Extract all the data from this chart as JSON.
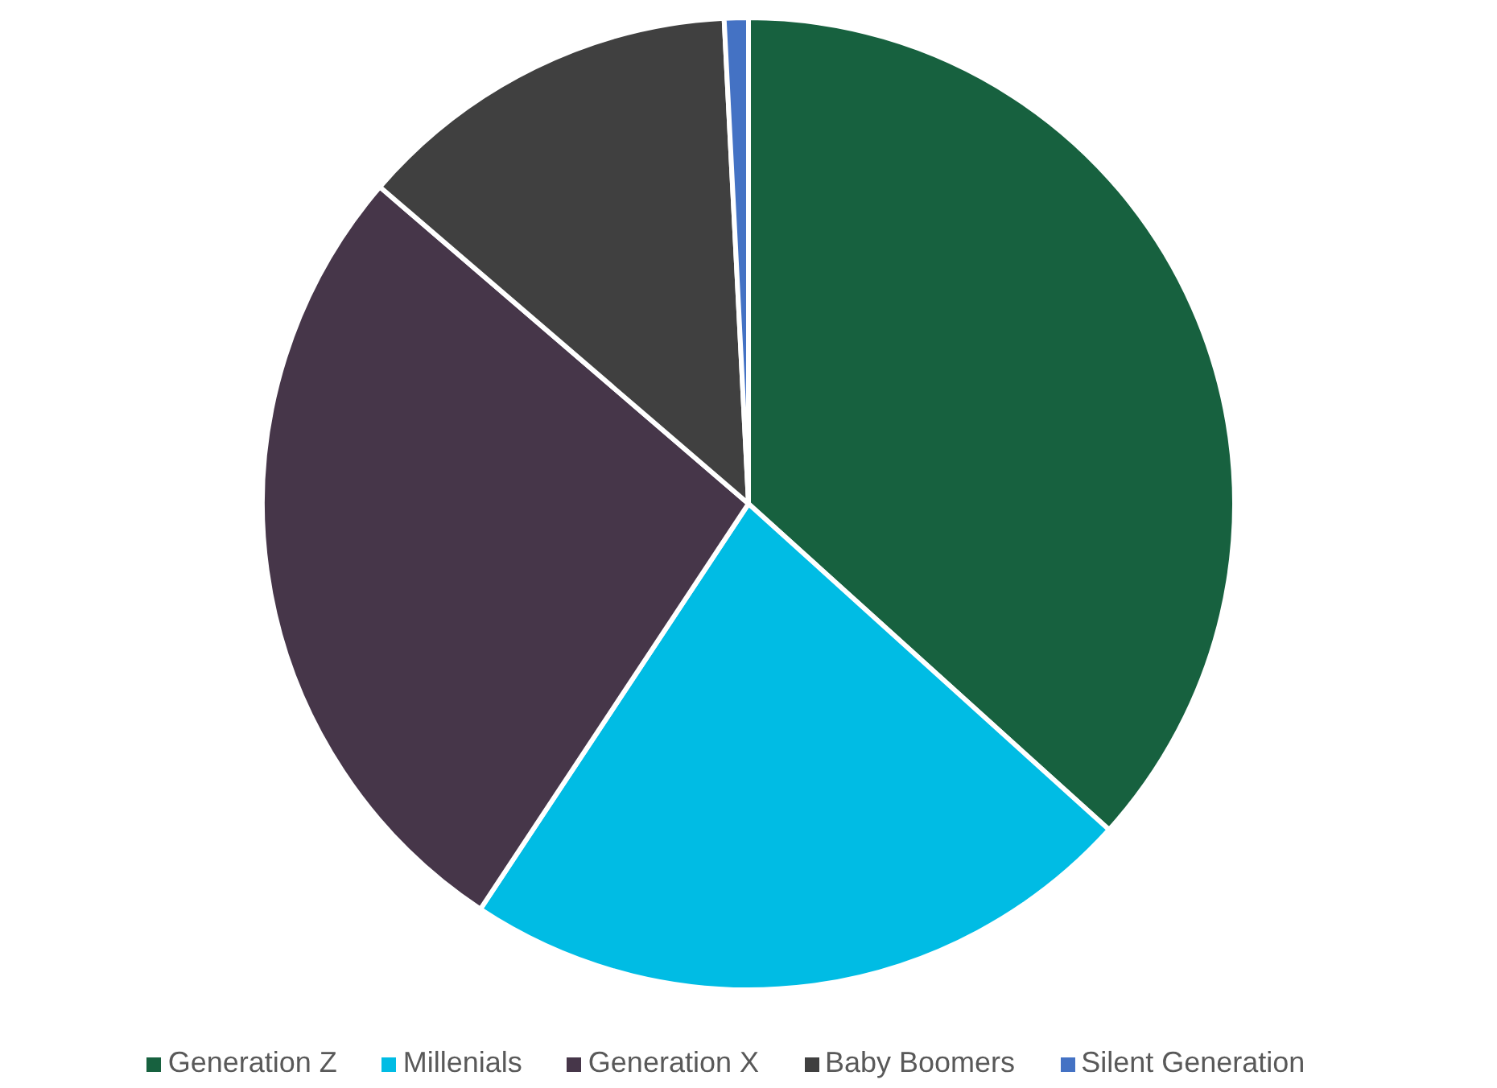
{
  "chart_data": {
    "type": "pie",
    "categories": [
      "Generation Z",
      "Millenials",
      "Generation X",
      "Baby Boomers",
      "Silent Generation"
    ],
    "values": [
      36.7,
      22.6,
      27.0,
      12.9,
      0.8
    ],
    "colors": [
      "#17613f",
      "#00bce4",
      "#463649",
      "#404040",
      "#4472c4"
    ],
    "legend": "bottom"
  }
}
